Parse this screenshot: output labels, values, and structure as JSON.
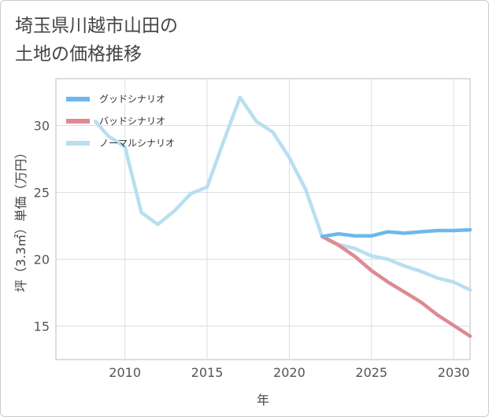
{
  "title_lines": [
    "埼玉県川越市山田の",
    "土地の価格推移"
  ],
  "chart_data": {
    "type": "line",
    "title": "埼玉県川越市山田の土地の価格推移",
    "xlabel": "年",
    "ylabel": "坪（3.3㎡）単価（万円）",
    "xlim": [
      2005.8,
      2031
    ],
    "ylim": [
      12.5,
      33.5
    ],
    "xticks": [
      2010,
      2015,
      2020,
      2025,
      2030
    ],
    "yticks": [
      15,
      20,
      25,
      30
    ],
    "grid": true,
    "legend_position": "top-left",
    "series": [
      {
        "name": "グッドシナリオ",
        "color": "#6cb8ee",
        "x": [
          2022,
          2023,
          2024,
          2025,
          2026,
          2027,
          2028,
          2029,
          2030,
          2031
        ],
        "values": [
          21.7,
          21.9,
          21.75,
          21.75,
          22.05,
          21.95,
          22.05,
          22.15,
          22.15,
          22.2
        ]
      },
      {
        "name": "バッドシナリオ",
        "color": "#de8a92",
        "x": [
          2022,
          2023,
          2024,
          2025,
          2026,
          2027,
          2028,
          2029,
          2030,
          2031
        ],
        "values": [
          21.7,
          21.05,
          20.2,
          19.15,
          18.3,
          17.55,
          16.8,
          15.85,
          15.05,
          14.25
        ]
      },
      {
        "name": "ノーマルシナリオ",
        "color": "#b8dff0",
        "x": [
          2008.2,
          2009,
          2010,
          2011,
          2012,
          2013,
          2014,
          2015,
          2016,
          2017,
          2018,
          2019,
          2020,
          2021,
          2022,
          2023,
          2024,
          2025,
          2026,
          2027,
          2028,
          2029,
          2030,
          2031
        ],
        "values": [
          30.3,
          29.2,
          28.4,
          23.5,
          22.6,
          23.6,
          24.9,
          25.4,
          28.8,
          32.1,
          30.3,
          29.5,
          27.6,
          25.2,
          21.7,
          21.1,
          20.8,
          20.25,
          20.0,
          19.5,
          19.1,
          18.6,
          18.3,
          17.7
        ]
      }
    ]
  }
}
